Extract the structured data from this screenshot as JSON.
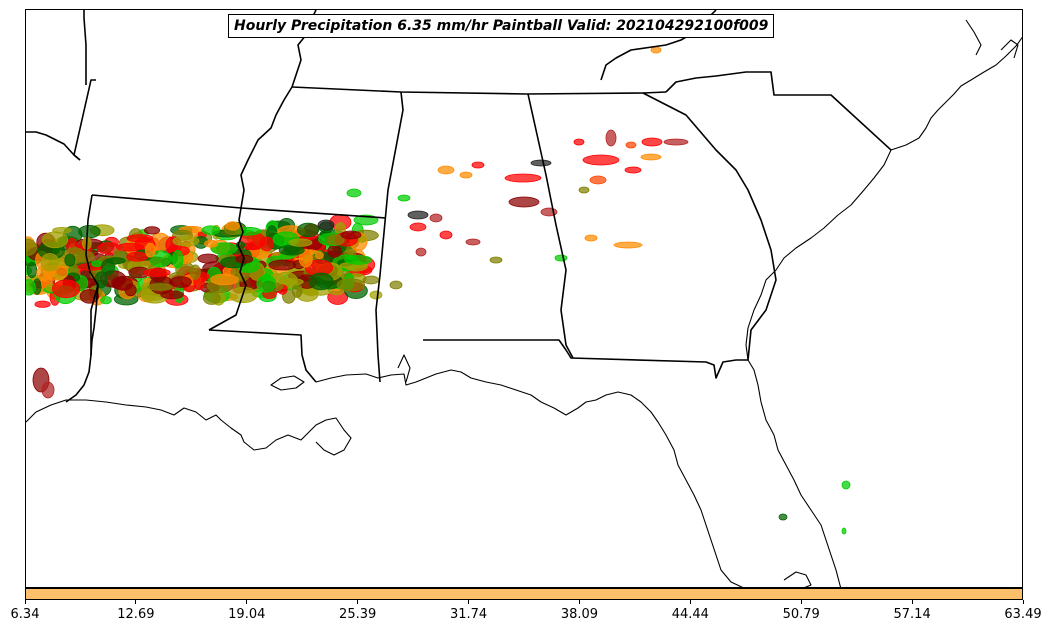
{
  "title": "Hourly Precipitation 6.35 mm/hr Paintball Valid: 202104292100f009",
  "colorbar": {
    "fill_color": "#fdc06a",
    "tick_labels": [
      "6.34",
      "12.69",
      "19.04",
      "25.39",
      "31.74",
      "38.09",
      "44.44",
      "50.79",
      "57.14",
      "63.49"
    ]
  },
  "member_colors": [
    "#ff0000",
    "#ff8c00",
    "#00cc00",
    "#8b0000",
    "#808000",
    "#a0a000",
    "#006400",
    "#222222",
    "#b22222",
    "#ff4500"
  ],
  "map": {
    "region": "Southeastern United States",
    "features": [
      "state-borders",
      "coastline",
      "precipitation-blobs"
    ]
  }
}
